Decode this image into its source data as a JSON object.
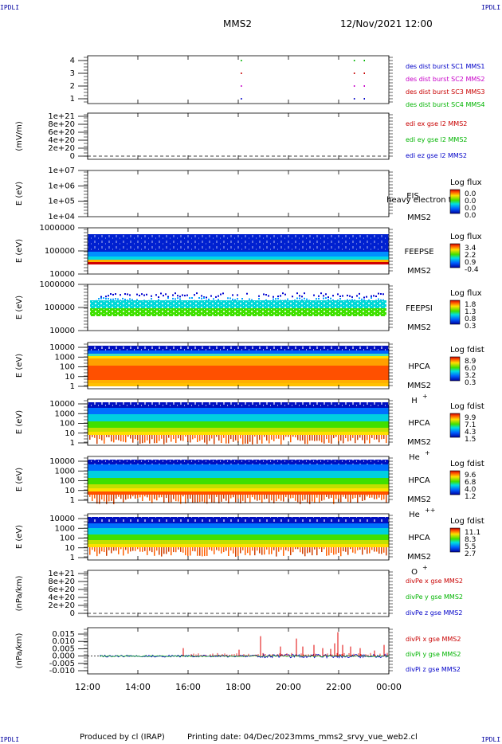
{
  "header": {
    "left_corner": "IPDLI",
    "right_corner": "IPDLI",
    "spacecraft": "MMS2",
    "datetime": "12/Nov/2021 12:00",
    "bottom_left_corner": "IPDLI",
    "bottom_right_corner": "IPDLI"
  },
  "footer": {
    "produced_by": "Produced by cl (IRAP)",
    "printing_date": "Printing date: 04/Dec/2023",
    "script_name": "mms_mms2_srvy_vue_web2.cl"
  },
  "x_axis": {
    "ticks": [
      "12:00",
      "14:00",
      "16:00",
      "18:00",
      "20:00",
      "22:00",
      "00:00"
    ]
  },
  "chart_data": [
    {
      "id": "burst",
      "type": "scatter",
      "ylabel": "",
      "yticks": [
        "4",
        "3",
        "2",
        "1"
      ],
      "ylim": [
        0.5,
        4.5
      ],
      "series": [
        {
          "name": "des dist burst SC1 MMS1",
          "color": "#0000c8",
          "x_hours": [
            18.1,
            22.6,
            23.0
          ],
          "y": [
            1,
            1,
            1
          ]
        },
        {
          "name": "des dist burst SC2 MMS2",
          "color": "#c800c8",
          "x_hours": [
            18.1,
            22.6,
            23.0
          ],
          "y": [
            2,
            2,
            2
          ]
        },
        {
          "name": "des dist burst SC3 MMS3",
          "color": "#c80000",
          "x_hours": [
            18.1,
            22.6,
            23.0
          ],
          "y": [
            3,
            3,
            3
          ]
        },
        {
          "name": "des dist burst SC4 MMS4",
          "color": "#00b400",
          "x_hours": [
            18.1,
            22.6,
            23.0
          ],
          "y": [
            4,
            4,
            4
          ]
        }
      ]
    },
    {
      "id": "edi",
      "type": "line",
      "ylabel": "(mV/m)",
      "yticks": [
        "1e+21",
        "8e+20",
        "6e+20",
        "4e+20",
        "2e+20",
        "0"
      ],
      "ylim": [
        0,
        1e+21
      ],
      "series": [
        {
          "name": "edi ex gse l2 MMS2",
          "color": "#c80000"
        },
        {
          "name": "edi ey gse l2 MMS2",
          "color": "#00b400"
        },
        {
          "name": "edi ez gse l2 MMS2",
          "color": "#0000c8"
        }
      ]
    },
    {
      "id": "eis",
      "type": "heatmap",
      "ylabel": "E (eV)",
      "yticks": [
        "1e+07",
        "1e+06",
        "1e+05",
        "1e+04"
      ],
      "yscale": "log",
      "instrument": "EIS",
      "overlay_text": "phxtof",
      "overlay_text2": "heavy electron to",
      "spacecraft": "MMS2",
      "colorbar_title": "Log flux",
      "colorbar_ticks": [
        "0.0",
        "0.0",
        "0.0",
        "0.0"
      ]
    },
    {
      "id": "feepse",
      "type": "heatmap",
      "ylabel": "E (eV)",
      "yticks": [
        "1000000",
        "100000",
        "10000"
      ],
      "yscale": "log",
      "instrument": "FEEPSE",
      "spacecraft": "MMS2",
      "colorbar_title": "Log flux",
      "colorbar_ticks": [
        "3.4",
        "2.2",
        "0.9",
        "-0.4"
      ]
    },
    {
      "id": "feepsi",
      "type": "heatmap",
      "ylabel": "E (eV)",
      "yticks": [
        "1000000",
        "100000",
        "10000"
      ],
      "yscale": "log",
      "instrument": "FEEPSI",
      "spacecraft": "MMS2",
      "colorbar_title": "Log flux",
      "colorbar_ticks": [
        "1.8",
        "1.3",
        "0.8",
        "0.3"
      ]
    },
    {
      "id": "hpca_h",
      "type": "heatmap",
      "ylabel": "E (eV)",
      "yticks": [
        "10000",
        "1000",
        "100",
        "10",
        "1"
      ],
      "yscale": "log",
      "instrument": "HPCA",
      "spacecraft": "MMS2",
      "species": "H",
      "species_sup": "+",
      "colorbar_title": "Log fdist",
      "colorbar_ticks": [
        "8.9",
        "6.0",
        "3.2",
        "0.3"
      ]
    },
    {
      "id": "hpca_he",
      "type": "heatmap",
      "ylabel": "E (eV)",
      "yticks": [
        "10000",
        "1000",
        "100",
        "10",
        "1"
      ],
      "yscale": "log",
      "instrument": "HPCA",
      "spacecraft": "MMS2",
      "species": "He",
      "species_sup": "+",
      "colorbar_title": "Log fdist",
      "colorbar_ticks": [
        "9.9",
        "7.1",
        "4.3",
        "1.5"
      ]
    },
    {
      "id": "hpca_hepp",
      "type": "heatmap",
      "ylabel": "E (eV)",
      "yticks": [
        "10000",
        "1000",
        "100",
        "10",
        "1"
      ],
      "yscale": "log",
      "instrument": "HPCA",
      "spacecraft": "MMS2",
      "species": "He",
      "species_sup": "++",
      "colorbar_title": "Log fdist",
      "colorbar_ticks": [
        "9.6",
        "6.8",
        "4.0",
        "1.2"
      ]
    },
    {
      "id": "hpca_o",
      "type": "heatmap",
      "ylabel": "E (eV)",
      "yticks": [
        "10000",
        "1000",
        "100",
        "10",
        "1"
      ],
      "yscale": "log",
      "instrument": "HPCA",
      "spacecraft": "MMS2",
      "species": "O",
      "species_sup": "+",
      "colorbar_title": "Log fdist",
      "colorbar_ticks": [
        "11.1",
        "8.3",
        "5.5",
        "2.7"
      ]
    },
    {
      "id": "divpe",
      "type": "line",
      "ylabel": "(nPa/km)",
      "yticks": [
        "1e+21",
        "8e+20",
        "6e+20",
        "4e+20",
        "2e+20",
        "0"
      ],
      "ylim": [
        0,
        1e+21
      ],
      "series": [
        {
          "name": "divPe x gse MMS2",
          "color": "#c80000"
        },
        {
          "name": "divPe y gse MMS2",
          "color": "#00b400"
        },
        {
          "name": "divPe z gse MMS2",
          "color": "#0000c8"
        }
      ]
    },
    {
      "id": "divpi",
      "type": "line",
      "ylabel": "(nPa/km)",
      "yticks": [
        "0.015",
        "0.010",
        "0.005",
        "0.000",
        "-0.005",
        "-0.010"
      ],
      "ylim": [
        -0.011,
        0.017
      ],
      "series": [
        {
          "name": "divPi x gse MMS2",
          "color": "#c80000"
        },
        {
          "name": "divPi y gse MMS2",
          "color": "#00b400"
        },
        {
          "name": "divPi z gse MMS2",
          "color": "#0000c8"
        }
      ]
    }
  ]
}
